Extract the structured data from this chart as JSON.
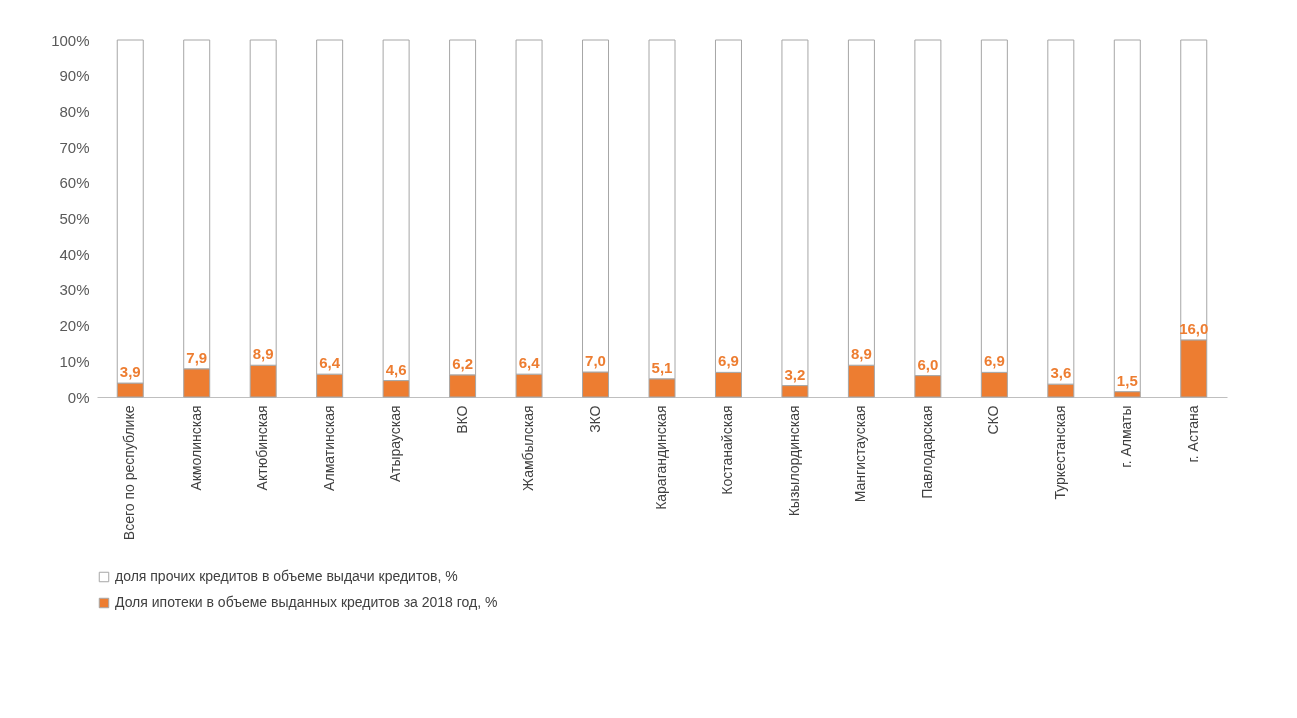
{
  "chart_data": {
    "type": "bar",
    "stacked": true,
    "categories": [
      "Всего по республике",
      "Акмолинская",
      "Актюбинская",
      "Алматинская",
      "Атырауская",
      "ВКО",
      "Жамбылская",
      "ЗКО",
      "Карагандинская",
      "Костанайская",
      "Кызылординская",
      "Мангистауская",
      "Павлодарская",
      "СКО",
      "Туркестанская",
      "г. Алматы",
      "г. Астана"
    ],
    "series": [
      {
        "name": "Доля ипотеки в объеме выданных кредитов за 2018 год, %",
        "color": "#ed7d31",
        "values": [
          3.9,
          7.9,
          8.9,
          6.4,
          4.6,
          6.2,
          6.4,
          7.0,
          5.1,
          6.9,
          3.2,
          8.9,
          6.0,
          6.9,
          3.6,
          1.5,
          16.0
        ],
        "value_labels": [
          "3,9",
          "7,9",
          "8,9",
          "6,4",
          "4,6",
          "6,2",
          "6,4",
          "7,0",
          "5,1",
          "6,9",
          "3,2",
          "8,9",
          "6,0",
          "6,9",
          "3,6",
          "1,5",
          "16,0"
        ]
      },
      {
        "name": "доля прочих кредитов в объеме выдачи кредитов, %",
        "color": "#ffffff",
        "values": [
          96.1,
          92.1,
          91.1,
          93.6,
          95.4,
          93.8,
          93.6,
          93.0,
          94.9,
          93.1,
          96.8,
          91.1,
          94.0,
          93.1,
          96.4,
          98.5,
          84.0
        ]
      }
    ],
    "ylim": [
      0,
      100
    ],
    "yticks": [
      {
        "value": 0,
        "label": "0%"
      },
      {
        "value": 10,
        "label": "10%"
      },
      {
        "value": 20,
        "label": "20%"
      },
      {
        "value": 30,
        "label": "30%"
      },
      {
        "value": 40,
        "label": "40%"
      },
      {
        "value": 50,
        "label": "50%"
      },
      {
        "value": 60,
        "label": "60%"
      },
      {
        "value": 70,
        "label": "70%"
      },
      {
        "value": 80,
        "label": "80%"
      },
      {
        "value": 90,
        "label": "90%"
      },
      {
        "value": 100,
        "label": "100%"
      }
    ],
    "grid": false,
    "legend": "bottom"
  }
}
